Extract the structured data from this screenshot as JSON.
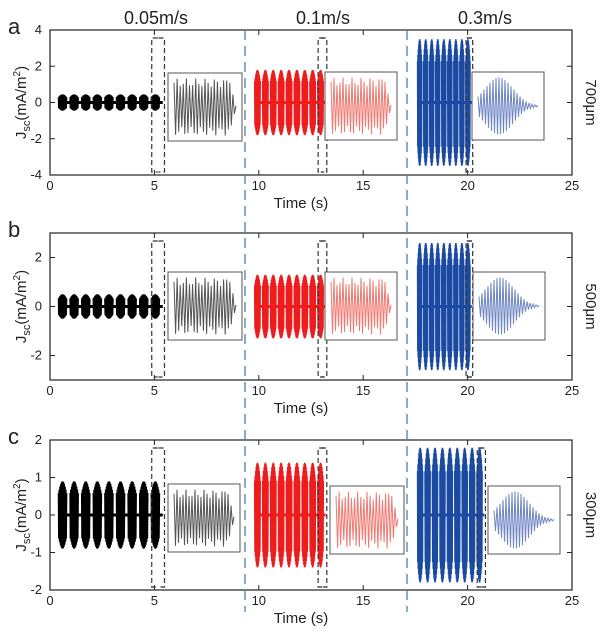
{
  "speed_labels": [
    "0.05m/s",
    "0.1m/s",
    "0.3m/s"
  ],
  "chart_data": [
    {
      "type": "line",
      "panel_label": "a",
      "side_label": "700μm",
      "xlabel": "Time (s)",
      "ylabel": "J_sc (mA/m^2)",
      "xlim": [
        0,
        25
      ],
      "ylim": [
        -4,
        4
      ],
      "xticks": [
        0,
        5,
        10,
        15,
        20,
        25
      ],
      "yticks": [
        -4,
        -2,
        0,
        2,
        4
      ],
      "segments": [
        {
          "name": "0.05m/s",
          "color": "#000000",
          "t_start": 0.4,
          "t_end": 5.4,
          "pulses": 9,
          "amplitude": 0.45
        },
        {
          "name": "0.1m/s",
          "color": "#ee1c1c",
          "t_start": 9.8,
          "t_end": 13.2,
          "pulses": 9,
          "amplitude": 1.8
        },
        {
          "name": "0.3m/s",
          "color": "#1b4aa3",
          "t_start": 17.6,
          "t_end": 20.2,
          "pulses": 9,
          "amplitude": 3.5
        }
      ]
    },
    {
      "type": "line",
      "panel_label": "b",
      "side_label": "500μm",
      "xlabel": "Time (s)",
      "ylabel": "J_sc (mA/m^2)",
      "xlim": [
        0,
        25
      ],
      "ylim": [
        -3,
        3
      ],
      "xticks": [
        0,
        5,
        10,
        15,
        20,
        25
      ],
      "yticks": [
        -2,
        0,
        2
      ],
      "segments": [
        {
          "name": "0.05m/s",
          "color": "#000000",
          "t_start": 0.4,
          "t_end": 5.4,
          "pulses": 9,
          "amplitude": 0.5
        },
        {
          "name": "0.1m/s",
          "color": "#ee1c1c",
          "t_start": 9.8,
          "t_end": 13.2,
          "pulses": 9,
          "amplitude": 1.3
        },
        {
          "name": "0.3m/s",
          "color": "#1b4aa3",
          "t_start": 17.6,
          "t_end": 20.2,
          "pulses": 9,
          "amplitude": 2.6
        }
      ]
    },
    {
      "type": "line",
      "panel_label": "c",
      "side_label": "300μm",
      "xlabel": "Time (s)",
      "ylabel": "J_sc (mA/m^2)",
      "xlim": [
        0,
        25
      ],
      "ylim": [
        -2,
        2
      ],
      "xticks": [
        0,
        5,
        10,
        15,
        20,
        25
      ],
      "yticks": [
        -2,
        -1,
        0,
        1,
        2
      ],
      "segments": [
        {
          "name": "0.05m/s",
          "color": "#000000",
          "t_start": 0.4,
          "t_end": 5.4,
          "pulses": 9,
          "amplitude": 0.9
        },
        {
          "name": "0.1m/s",
          "color": "#ee1c1c",
          "t_start": 9.8,
          "t_end": 13.2,
          "pulses": 9,
          "amplitude": 1.4
        },
        {
          "name": "0.3m/s",
          "color": "#1b4aa3",
          "t_start": 17.6,
          "t_end": 20.8,
          "pulses": 9,
          "amplitude": 1.8
        }
      ]
    }
  ],
  "colors": {
    "black_series": "#000000",
    "red_series": "#ee1c1c",
    "blue_series": "#1b4aa3",
    "divider": "#4a7fb5"
  }
}
